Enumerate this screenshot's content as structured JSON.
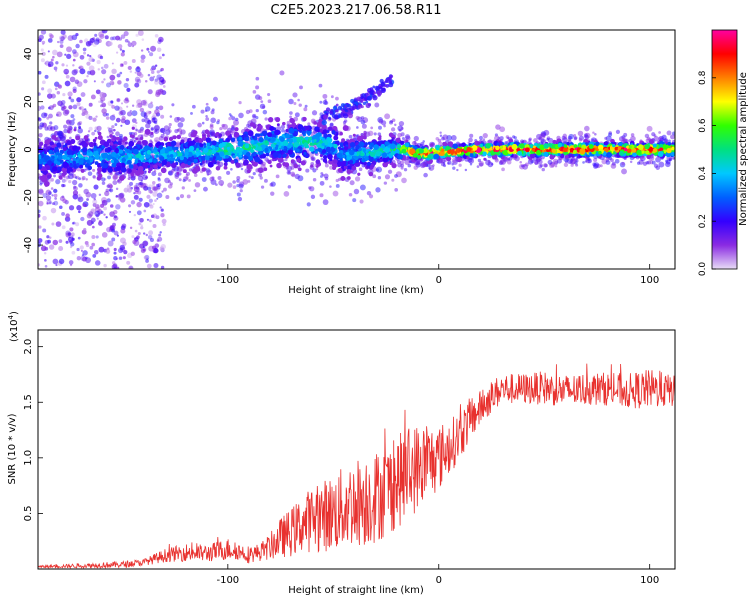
{
  "figure": {
    "title": "C2E5.2023.217.06.58.R11"
  },
  "chart_data": [
    {
      "type": "heatmap",
      "xlabel": "Height of straight line (km)",
      "ylabel": "Frequency (Hz)",
      "xlim": [
        -190,
        112
      ],
      "ylim": [
        -50,
        50
      ],
      "x_ticks": [
        -100,
        0,
        100
      ],
      "y_ticks": [
        -40,
        -20,
        0,
        20,
        40
      ],
      "grid": false,
      "ridge": {
        "x": [
          -190,
          -170,
          -150,
          -130,
          -110,
          -100,
          -90,
          -75,
          -60,
          -50,
          -45,
          -40,
          -30,
          -20,
          -15,
          -10,
          0,
          25,
          50,
          75,
          100,
          112
        ],
        "y": [
          -4,
          -3,
          -3,
          -2,
          -1,
          0,
          1,
          3,
          3,
          2,
          -3,
          -2,
          -1,
          0,
          0,
          -2,
          -1,
          0,
          0,
          0,
          0,
          0
        ],
        "amplitude": [
          0.35,
          0.38,
          0.4,
          0.42,
          0.45,
          0.5,
          0.5,
          0.45,
          0.48,
          0.4,
          0.35,
          0.4,
          0.45,
          0.5,
          0.85,
          0.92,
          0.95,
          0.95,
          0.95,
          0.95,
          0.95,
          0.9
        ],
        "spread_hz": [
          6,
          6,
          6,
          5,
          5,
          5,
          6,
          6,
          6,
          6,
          6,
          5,
          5,
          4,
          2,
          2,
          2,
          2,
          2,
          2,
          2,
          2
        ]
      },
      "faint_streak": {
        "x": [
          -55,
          -40,
          -30,
          -22
        ],
        "y": [
          13,
          18,
          24,
          30
        ]
      },
      "colorbar": {
        "label": "Normalized spectral amplitude",
        "range": [
          0.0,
          1.0
        ],
        "ticks": [
          "0.0",
          "0.2",
          "0.4",
          "0.6",
          "0.8"
        ],
        "tick_values": [
          0.0,
          0.2,
          0.4,
          0.6,
          0.8
        ],
        "colors": [
          "#e8dcf6",
          "#8a2be2",
          "#3300ff",
          "#0060ff",
          "#00c8ff",
          "#00e080",
          "#30ff00",
          "#ffff00",
          "#ff8000",
          "#ff0000",
          "#ff00a0"
        ]
      }
    },
    {
      "type": "line",
      "xlabel": "Height of straight line (km)",
      "ylabel": "SNR (10 * v/v)",
      "scale_label": "(x10",
      "scale_exponent": "4",
      "scale_suffix": ")",
      "xlim": [
        -190,
        112
      ],
      "ylim": [
        0,
        2.15
      ],
      "x_ticks": [
        -100,
        0,
        100
      ],
      "y_ticks": [
        "0.5",
        "1.0",
        "1.5",
        "2.0"
      ],
      "y_tick_values": [
        0.5,
        1.0,
        1.5,
        2.0
      ],
      "grid": false,
      "series": [
        {
          "color": "#e8312e",
          "x": [
            -190,
            -170,
            -150,
            -140,
            -130,
            -120,
            -110,
            -100,
            -95,
            -90,
            -85,
            -80,
            -75,
            -70,
            -65,
            -60,
            -55,
            -50,
            -45,
            -40,
            -35,
            -30,
            -25,
            -20,
            -15,
            -10,
            -5,
            0,
            5,
            10,
            15,
            20,
            25,
            30,
            40,
            50,
            60,
            70,
            80,
            90,
            100,
            112
          ],
          "y": [
            0.02,
            0.03,
            0.04,
            0.06,
            0.12,
            0.15,
            0.14,
            0.18,
            0.16,
            0.13,
            0.15,
            0.2,
            0.28,
            0.33,
            0.4,
            0.45,
            0.48,
            0.5,
            0.55,
            0.6,
            0.62,
            0.65,
            0.7,
            0.78,
            0.85,
            0.92,
            0.96,
            1.0,
            1.1,
            1.2,
            1.35,
            1.45,
            1.55,
            1.62,
            1.62,
            1.63,
            1.6,
            1.62,
            1.62,
            1.6,
            1.62,
            1.6
          ],
          "noise": [
            0.01,
            0.02,
            0.03,
            0.03,
            0.06,
            0.08,
            0.08,
            0.1,
            0.08,
            0.08,
            0.08,
            0.12,
            0.18,
            0.22,
            0.25,
            0.3,
            0.32,
            0.35,
            0.38,
            0.4,
            0.42,
            0.42,
            0.42,
            0.42,
            0.42,
            0.4,
            0.35,
            0.3,
            0.25,
            0.22,
            0.2,
            0.16,
            0.15,
            0.14,
            0.14,
            0.15,
            0.15,
            0.15,
            0.15,
            0.16,
            0.18,
            0.14
          ]
        }
      ]
    }
  ]
}
